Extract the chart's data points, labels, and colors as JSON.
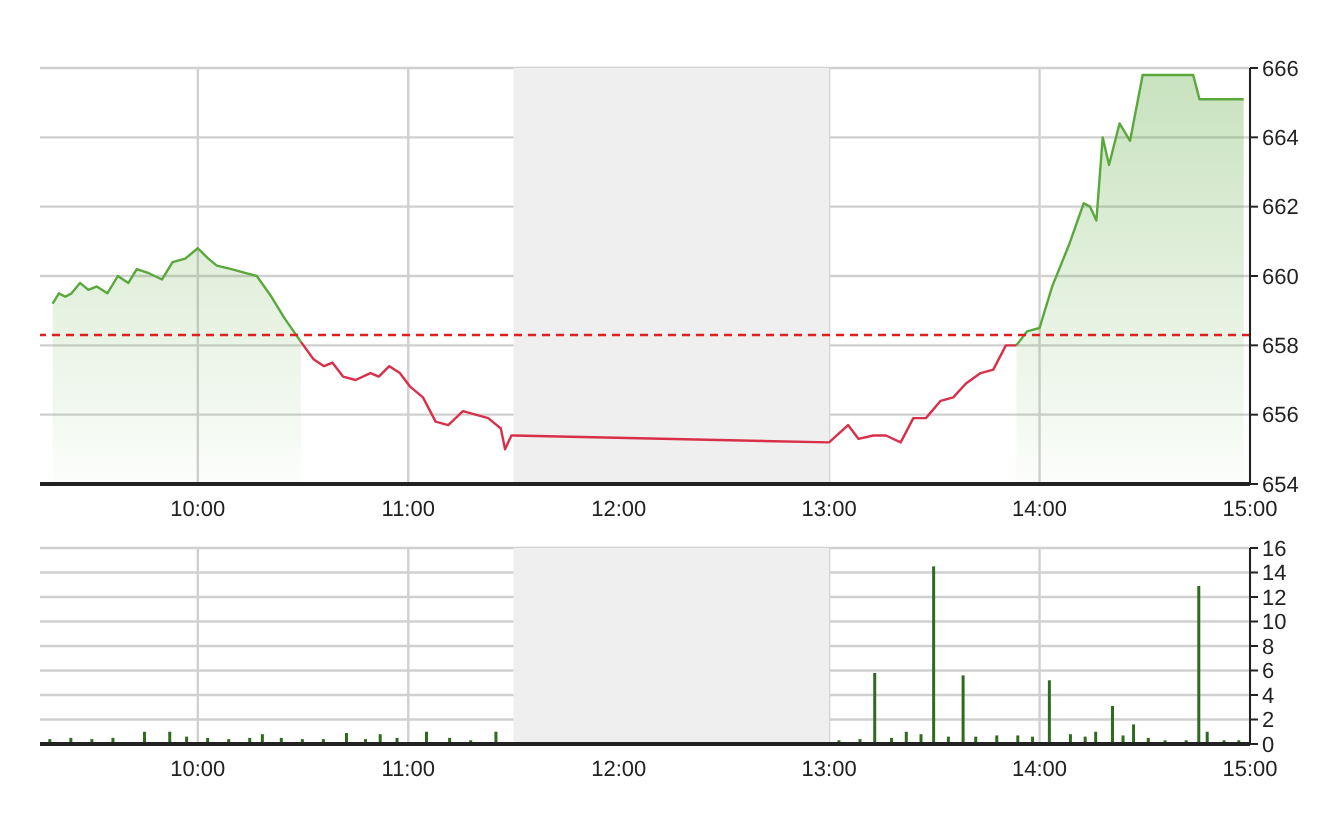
{
  "chart_data": [
    {
      "type": "area",
      "x": [
        9.31,
        9.34,
        9.37,
        9.4,
        9.44,
        9.48,
        9.52,
        9.57,
        9.62,
        9.67,
        9.71,
        9.76,
        9.83,
        9.88,
        9.94,
        10.0,
        10.05,
        10.09,
        10.16,
        10.22,
        10.28,
        10.35,
        10.41,
        10.49,
        10.55,
        10.6,
        10.64,
        10.69,
        10.75,
        10.82,
        10.86,
        10.91,
        10.96,
        11.01,
        11.07,
        11.13,
        11.19,
        11.26,
        11.32,
        11.38,
        11.44,
        11.46,
        11.49,
        11.5,
        13.0,
        13.09,
        13.14,
        13.21,
        13.27,
        13.34,
        13.4,
        13.46,
        13.53,
        13.59,
        13.65,
        13.72,
        13.78,
        13.84,
        13.89,
        13.94,
        14.0,
        14.06,
        14.14,
        14.21,
        14.24,
        14.27,
        14.3,
        14.33,
        14.38,
        14.43,
        14.49,
        14.73,
        14.76,
        14.97
      ],
      "series": [
        {
          "type": "area",
          "color": "#5aa83c",
          "values": [
            659.2,
            659.5,
            659.4,
            659.5,
            659.8,
            659.6,
            659.7,
            659.5,
            660.0,
            659.8,
            660.2,
            660.1,
            659.9,
            660.4,
            660.5,
            660.8,
            660.5,
            660.3,
            660.2,
            660.1,
            660.0,
            659.4,
            658.8,
            658.1,
            null,
            null,
            null,
            null,
            null,
            null,
            null,
            null,
            null,
            null,
            null,
            null,
            null,
            null,
            null,
            null,
            null,
            null,
            null,
            null,
            null,
            null,
            null,
            null,
            null,
            null,
            null,
            null,
            null,
            null,
            null,
            null,
            null,
            null,
            658.0,
            658.4,
            658.5,
            659.7,
            660.9,
            662.1,
            662.0,
            661.6,
            664.0,
            663.2,
            664.4,
            663.9,
            665.8,
            665.8,
            665.1,
            665.1
          ]
        },
        {
          "type": "line",
          "color": "#d9304a",
          "x": [
            10.49,
            10.55,
            10.6,
            10.64,
            10.69,
            10.75,
            10.82,
            10.86,
            10.91,
            10.96,
            11.01,
            11.07,
            11.13,
            11.19,
            11.26,
            11.32,
            11.38,
            11.44,
            11.46,
            11.49,
            11.5,
            13.0,
            13.09,
            13.14,
            13.21,
            13.27,
            13.34,
            13.4,
            13.46,
            13.53,
            13.59,
            13.65,
            13.72,
            13.78,
            13.84,
            13.89
          ],
          "values": [
            658.1,
            657.6,
            657.4,
            657.5,
            657.1,
            657.0,
            657.2,
            657.1,
            657.4,
            657.2,
            656.8,
            656.5,
            655.8,
            655.7,
            656.1,
            656.0,
            655.9,
            655.6,
            655.0,
            655.4,
            655.4,
            655.2,
            655.7,
            655.3,
            655.4,
            655.4,
            655.2,
            655.9,
            655.9,
            656.4,
            656.5,
            656.9,
            657.2,
            657.3,
            658.0,
            658.0
          ]
        }
      ],
      "xlim": [
        9.25,
        15
      ],
      "xticks": [
        {
          "value": 10,
          "label": "10:00"
        },
        {
          "value": 11,
          "label": "11:00"
        },
        {
          "value": 12,
          "label": "12:00"
        },
        {
          "value": 13,
          "label": "13:00"
        },
        {
          "value": 14,
          "label": "14:00"
        },
        {
          "value": 15,
          "label": "15:00"
        }
      ],
      "ylim": [
        654,
        666
      ],
      "yticks": [
        654,
        656,
        658,
        660,
        662,
        664,
        666
      ],
      "grid": true,
      "ref_lines": [
        {
          "axis": "y",
          "value": 658.3,
          "color": "#e02020",
          "line_style": "dashed"
        }
      ],
      "bands": [
        {
          "axis": "x",
          "from": 11.5,
          "to": 13,
          "color": "#efefef"
        }
      ]
    },
    {
      "type": "bar",
      "x": [
        9.3,
        9.4,
        9.5,
        9.6,
        9.75,
        9.87,
        9.95,
        10.05,
        10.15,
        10.25,
        10.31,
        10.4,
        10.5,
        10.6,
        10.71,
        10.8,
        10.87,
        10.95,
        11.09,
        11.2,
        11.3,
        11.42,
        13.05,
        13.15,
        13.22,
        13.3,
        13.37,
        13.44,
        13.5,
        13.57,
        13.64,
        13.7,
        13.8,
        13.9,
        13.97,
        14.05,
        14.15,
        14.22,
        14.27,
        14.35,
        14.4,
        14.45,
        14.52,
        14.6,
        14.7,
        14.76,
        14.8,
        14.88,
        14.95
      ],
      "values": [
        0.4,
        0.5,
        0.4,
        0.5,
        1.0,
        1.0,
        0.6,
        0.5,
        0.4,
        0.5,
        0.8,
        0.5,
        0.4,
        0.4,
        0.9,
        0.4,
        0.8,
        0.5,
        1.0,
        0.5,
        0.3,
        1.0,
        0.3,
        0.4,
        5.8,
        0.5,
        1.0,
        0.8,
        14.5,
        0.6,
        5.6,
        0.6,
        0.7,
        0.7,
        0.6,
        5.2,
        0.8,
        0.6,
        1.0,
        3.1,
        0.7,
        1.6,
        0.5,
        0.3,
        0.3,
        12.9,
        1.0,
        0.3,
        0.3
      ],
      "color": "#2f6b1e",
      "xlim": [
        9.25,
        15
      ],
      "xticks": [
        {
          "value": 10,
          "label": "10:00"
        },
        {
          "value": 11,
          "label": "11:00"
        },
        {
          "value": 12,
          "label": "12:00"
        },
        {
          "value": 13,
          "label": "13:00"
        },
        {
          "value": 14,
          "label": "14:00"
        },
        {
          "value": 15,
          "label": "15:00"
        }
      ],
      "ylim": [
        0,
        16
      ],
      "yticks": [
        0,
        2,
        4,
        6,
        8,
        10,
        12,
        14,
        16
      ],
      "grid": true,
      "bands": [
        {
          "axis": "x",
          "from": 11.5,
          "to": 13,
          "color": "#efefef"
        }
      ]
    }
  ]
}
